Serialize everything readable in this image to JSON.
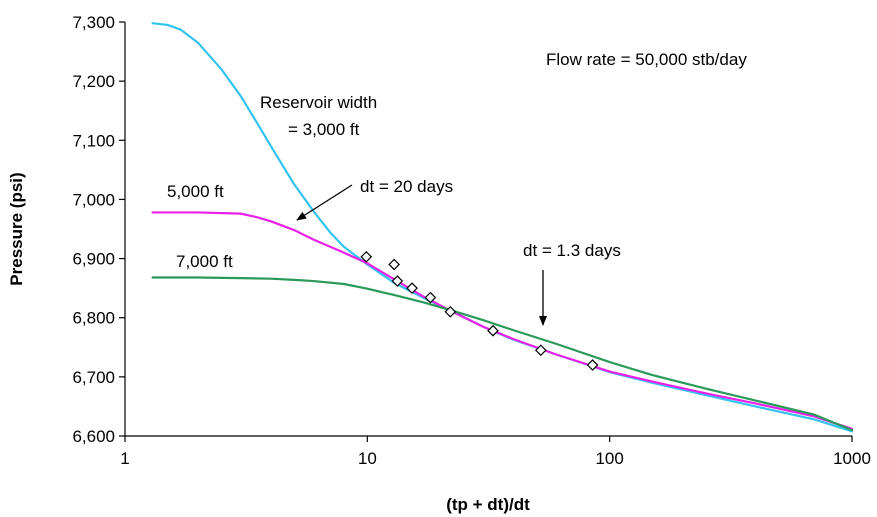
{
  "chart_data": {
    "type": "line",
    "xscale": "log",
    "xlim": [
      1,
      1000
    ],
    "ylim": [
      6600,
      7300
    ],
    "xlabel": "(tp + dt)/dt",
    "ylabel": "Pressure (psi)",
    "x_tick_labels": [
      "1",
      "10",
      "100",
      "1000"
    ],
    "x_ticks": [
      1,
      10,
      100,
      1000
    ],
    "y_tick_labels": [
      "6,600",
      "6,700",
      "6,800",
      "6,900",
      "7,000",
      "7,100",
      "7,200",
      "7,300"
    ],
    "y_ticks": [
      6600,
      6700,
      6800,
      6900,
      7000,
      7100,
      7200,
      7300
    ],
    "grid": false,
    "series": [
      {
        "name": "3,000 ft",
        "color": "#33c3f0",
        "x": [
          1.3,
          1.5,
          1.7,
          2,
          2.5,
          3,
          3.5,
          4,
          5,
          6,
          7,
          8,
          10,
          13,
          17,
          22,
          30,
          40,
          60,
          100,
          150,
          250,
          400,
          700,
          1000
        ],
        "y": [
          7298,
          7295,
          7287,
          7265,
          7220,
          7175,
          7130,
          7090,
          7025,
          6980,
          6945,
          6920,
          6890,
          6858,
          6834,
          6812,
          6785,
          6763,
          6738,
          6708,
          6690,
          6669,
          6650,
          6628,
          6608
        ]
      },
      {
        "name": "5,000 ft",
        "color": "#e820e8",
        "x": [
          1.3,
          2,
          3,
          3.5,
          4,
          5,
          6,
          8,
          10,
          13,
          17,
          22,
          30,
          40,
          60,
          100,
          150,
          250,
          400,
          700,
          1000
        ],
        "y": [
          6978,
          6978,
          6976,
          6970,
          6963,
          6948,
          6932,
          6910,
          6892,
          6864,
          6836,
          6812,
          6785,
          6764,
          6738,
          6709,
          6692,
          6672,
          6655,
          6633,
          6612
        ]
      },
      {
        "name": "7,000 ft",
        "color": "#2a9a5a",
        "x": [
          1.3,
          2,
          3,
          4,
          5,
          6,
          8,
          10,
          13,
          17,
          22,
          30,
          40,
          60,
          100,
          150,
          250,
          400,
          700,
          1000
        ],
        "y": [
          6868,
          6868,
          6867,
          6866,
          6864,
          6862,
          6857,
          6849,
          6838,
          6826,
          6813,
          6796,
          6779,
          6756,
          6725,
          6703,
          6680,
          6660,
          6636,
          6610
        ]
      }
    ],
    "markers": {
      "shape": "diamond",
      "x": [
        9.9,
        12.9,
        13.3,
        15.3,
        18.2,
        22,
        33,
        52,
        85
      ],
      "y": [
        6903,
        6890,
        6862,
        6850,
        6834,
        6810,
        6778,
        6745,
        6720
      ]
    },
    "annotations": {
      "flow_rate": "Flow rate = 50,000 stb/day",
      "reservoir_width_line1": "Reservoir width",
      "reservoir_width_line2": "= 3,000 ft",
      "label_5000": "5,000 ft",
      "label_7000": "7,000 ft",
      "dt20": "dt = 20 days",
      "dt13": "dt = 1.3 days"
    }
  }
}
